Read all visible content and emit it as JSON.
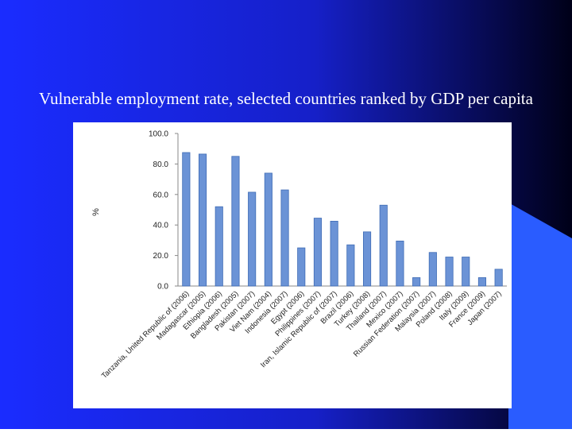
{
  "slide": {
    "title": "Vulnerable employment rate, selected countries ranked by GDP per capita"
  },
  "colors": {
    "background_left": "#1a2cff",
    "background_right": "#000018",
    "accent_shape": "#2a5cff",
    "bar_fill": "#6b93d6",
    "bar_stroke": "#3e6bb5"
  },
  "chart_data": {
    "type": "bar",
    "categories": [
      "Tanzania, United Republic of (2006)",
      "Madagascar (2005)",
      "Ethiopia (2006)",
      "Bangladesh (2005)",
      "Pakistan (2007)",
      "Viet Nam (2004)",
      "Indonesia (2007)",
      "Egypt (2006)",
      "Philippines (2007)",
      "Iran, Islamic Republic of (2007)",
      "Brazil (2006)",
      "Turkey (2008)",
      "Thailand (2007)",
      "Mexico (2007)",
      "Russian Federation (2007)",
      "Malaysia (2007)",
      "Poland (2008)",
      "Italy (2009)",
      "France (2009)",
      "Japan (2007)"
    ],
    "values": [
      87.5,
      86.5,
      52,
      85,
      61.5,
      74,
      63,
      25,
      44.5,
      42.5,
      27,
      35.5,
      53,
      29.5,
      5.5,
      22,
      19,
      19,
      5.5,
      11
    ],
    "yticks": [
      "0.0",
      "20.0",
      "40.0",
      "60.0",
      "80.0",
      "100.0"
    ],
    "ylim": [
      0,
      100
    ],
    "ylabel": "%",
    "xlabel": "",
    "title": "",
    "grid": false,
    "legend": "none"
  }
}
